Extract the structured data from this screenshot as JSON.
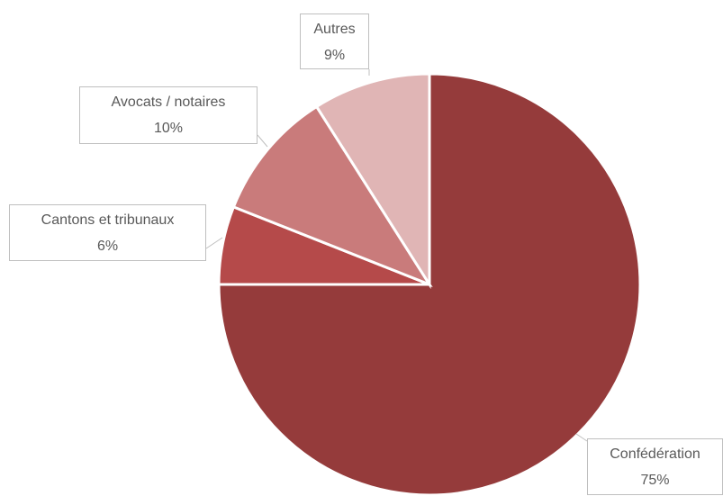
{
  "chart_data": {
    "type": "pie",
    "categories": [
      "Confédération",
      "Cantons et tribunaux",
      "Avocats / notaires",
      "Autres"
    ],
    "values": [
      75,
      6,
      10,
      9
    ],
    "value_labels": [
      "75%",
      "6%",
      "10%",
      "9%"
    ],
    "colors": [
      "#953b3b",
      "#b54a4a",
      "#c97b7b",
      "#e0b5b5"
    ]
  }
}
